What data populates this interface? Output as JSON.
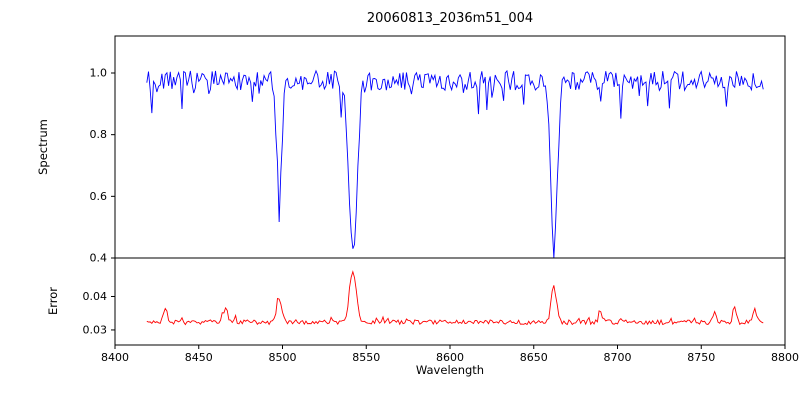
{
  "figure": {
    "background": "#ffffff",
    "axis_color": "#000000"
  },
  "chart_data": {
    "type": "line",
    "title": "20060813_2036m51_004",
    "xlabel": "Wavelength",
    "xlim": [
      8400,
      8800
    ],
    "xticks": [
      8400,
      8450,
      8500,
      8550,
      8600,
      8650,
      8700,
      8750,
      8800
    ],
    "xtick_labels": [
      "8400",
      "8450",
      "8500",
      "8550",
      "8600",
      "8650",
      "8700",
      "8750",
      "8800"
    ],
    "grid": false,
    "legend": "none",
    "subplots": [
      {
        "name": "spectrum",
        "ylabel": "Spectrum",
        "line_color": "#0000ff",
        "ylim": [
          0.4,
          1.12
        ],
        "yticks": [
          0.4,
          0.6,
          0.8,
          1.0
        ],
        "ytick_labels": [
          "0.4",
          "0.6",
          "0.8",
          "1.0"
        ],
        "x_data_range": [
          8419,
          8787
        ],
        "sample_step": 1,
        "baseline": 0.975,
        "noise_amplitude": 0.032,
        "spike_probability": 0.1,
        "spike_max_extra": 0.11,
        "spike_direction": -1,
        "noise_seed": 20060813,
        "absorption_features": [
          {
            "center": 8498.0,
            "amplitude": -0.35,
            "sigma": 1.6
          },
          {
            "center": 8542.1,
            "amplitude": -0.55,
            "sigma": 2.4
          },
          {
            "center": 8662.1,
            "amplitude": -0.54,
            "sigma": 2.0
          }
        ]
      },
      {
        "name": "error",
        "ylabel": "Error",
        "line_color": "#ff0000",
        "ylim": [
          0.0255,
          0.0515
        ],
        "yticks": [
          0.03,
          0.04
        ],
        "ytick_labels": [
          "0.03",
          "0.04"
        ],
        "x_data_range": [
          8419,
          8787
        ],
        "sample_step": 1,
        "baseline": 0.0323,
        "noise_amplitude": 0.0007,
        "spike_probability": 0.08,
        "spike_max_extra": 0.0018,
        "spike_direction": 1,
        "noise_seed": 2036,
        "absorption_features": [
          {
            "center": 8430,
            "amplitude": 0.004,
            "sigma": 1.2
          },
          {
            "center": 8466,
            "amplitude": 0.0045,
            "sigma": 1.2
          },
          {
            "center": 8498,
            "amplitude": 0.0075,
            "sigma": 1.5
          },
          {
            "center": 8542,
            "amplitude": 0.0155,
            "sigma": 2.0
          },
          {
            "center": 8662,
            "amplitude": 0.0105,
            "sigma": 1.6
          },
          {
            "center": 8690,
            "amplitude": 0.003,
            "sigma": 1.0
          },
          {
            "center": 8758,
            "amplitude": 0.0035,
            "sigma": 1.0
          },
          {
            "center": 8770,
            "amplitude": 0.0045,
            "sigma": 1.0
          },
          {
            "center": 8782,
            "amplitude": 0.004,
            "sigma": 1.0
          }
        ]
      }
    ]
  }
}
